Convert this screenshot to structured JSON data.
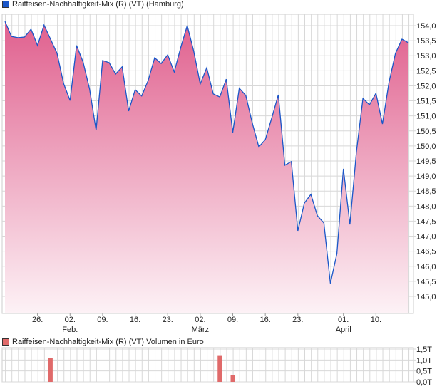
{
  "colors": {
    "line": "#1a56c8",
    "fill_top": "#e0608e",
    "fill_bottom": "#fdf2f6",
    "volume": "#e06a6a",
    "grid": "#d8d8d8"
  },
  "chart_data": [
    {
      "type": "area",
      "title": "Raiffeisen-Nachhaltigkeit-Mix (R) (VT) (Hamburg)",
      "ylim": [
        144.7,
        154.4
      ],
      "yticks": [
        "154,0",
        "153,5",
        "153,0",
        "152,5",
        "152,0",
        "151,5",
        "151,0",
        "150,5",
        "150,0",
        "149,5",
        "149,0",
        "148,5",
        "148,0",
        "147,5",
        "147,0",
        "146,5",
        "146,0",
        "145,5",
        "145,0"
      ],
      "ytick_values": [
        154,
        153.5,
        153,
        152.5,
        152,
        151.5,
        151,
        150.5,
        150,
        149.5,
        149,
        148.5,
        148,
        147.5,
        147,
        146.5,
        146,
        145.5,
        145
      ],
      "xticks": [
        {
          "index": 5,
          "label": "26.",
          "month": ""
        },
        {
          "index": 10,
          "label": "02.",
          "month": "Feb."
        },
        {
          "index": 15,
          "label": "09.",
          "month": ""
        },
        {
          "index": 20,
          "label": "16.",
          "month": ""
        },
        {
          "index": 25,
          "label": "23.",
          "month": ""
        },
        {
          "index": 30,
          "label": "02.",
          "month": "März"
        },
        {
          "index": 35,
          "label": "09.",
          "month": ""
        },
        {
          "index": 40,
          "label": "16.",
          "month": ""
        },
        {
          "index": 45,
          "label": "23.",
          "month": ""
        },
        {
          "index": 52,
          "label": "01.",
          "month": "April"
        },
        {
          "index": 57,
          "label": "10.",
          "month": ""
        }
      ],
      "values": [
        154.14,
        153.64,
        153.6,
        153.62,
        153.88,
        153.34,
        154.02,
        153.55,
        153.08,
        152.08,
        151.51,
        153.34,
        152.79,
        151.89,
        150.52,
        152.84,
        152.77,
        152.39,
        152.63,
        151.16,
        151.87,
        151.66,
        152.18,
        152.93,
        152.74,
        153.03,
        152.46,
        153.27,
        154.0,
        153.15,
        152.06,
        152.6,
        151.73,
        151.63,
        152.22,
        150.45,
        151.92,
        151.68,
        150.76,
        149.97,
        150.21,
        150.94,
        151.7,
        149.36,
        149.48,
        147.18,
        148.1,
        148.39,
        147.68,
        147.44,
        145.43,
        146.42,
        149.24,
        147.39,
        149.81,
        151.58,
        151.37,
        151.75,
        150.73,
        152.11,
        153.08,
        153.55,
        153.43
      ],
      "grid": true
    },
    {
      "type": "bar",
      "title": "Raiffeisen-Nachhaltigkeit-Mix (R) (VT) Volumen in Euro",
      "ylim": [
        0,
        1.5
      ],
      "yticks": [
        "1,5T",
        "1,0T",
        "0,5T",
        "0,0T"
      ],
      "ytick_values": [
        1.5,
        1.0,
        0.5,
        0
      ],
      "bars": [
        {
          "index": 7,
          "value": 1.1
        },
        {
          "index": 33,
          "value": 1.22
        },
        {
          "index": 35,
          "value": 0.3
        }
      ]
    }
  ]
}
